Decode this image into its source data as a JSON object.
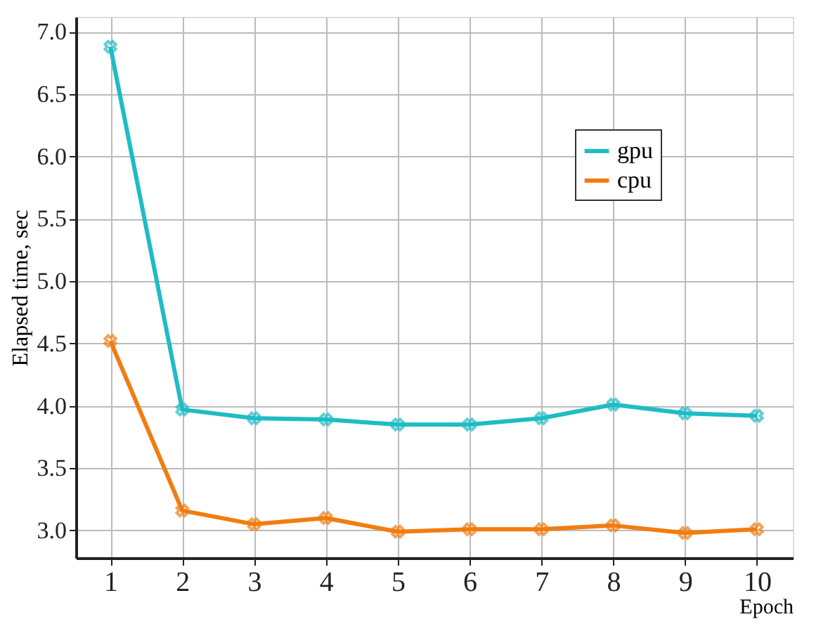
{
  "chart_data": {
    "type": "line",
    "xlabel": "Epoch",
    "ylabel": "Elapsed time, sec",
    "x": [
      1,
      2,
      3,
      4,
      5,
      6,
      7,
      8,
      9,
      10
    ],
    "series": [
      {
        "name": "gpu",
        "color": "#1fbcc4",
        "values": [
          6.88,
          3.97,
          3.9,
          3.89,
          3.85,
          3.85,
          3.9,
          4.01,
          3.94,
          3.92
        ]
      },
      {
        "name": "cpu",
        "color": "#f07d12",
        "values": [
          4.52,
          3.16,
          3.05,
          3.1,
          2.99,
          3.01,
          3.01,
          3.04,
          2.98,
          3.01
        ]
      }
    ],
    "xlim": [
      0.52,
      10.5
    ],
    "xticks": [
      1,
      2,
      3,
      4,
      5,
      6,
      7,
      8,
      9,
      10
    ],
    "ylim": [
      2.78,
      7.12
    ],
    "yticks": [
      {
        "value": 3,
        "label": "3.0"
      },
      {
        "value": 3.5,
        "label": "3.5"
      },
      {
        "value": 4,
        "label": "4.0"
      },
      {
        "value": 4.5,
        "label": "4.5"
      },
      {
        "value": 5,
        "label": "5.0"
      },
      {
        "value": 5.5,
        "label": "5.5"
      },
      {
        "value": 6,
        "label": "6.0"
      },
      {
        "value": 6.5,
        "label": "6.5"
      },
      {
        "value": 7,
        "label": "7.0"
      }
    ],
    "grid": true,
    "legend": "top right",
    "marker": "cross",
    "line_style": "solid"
  }
}
